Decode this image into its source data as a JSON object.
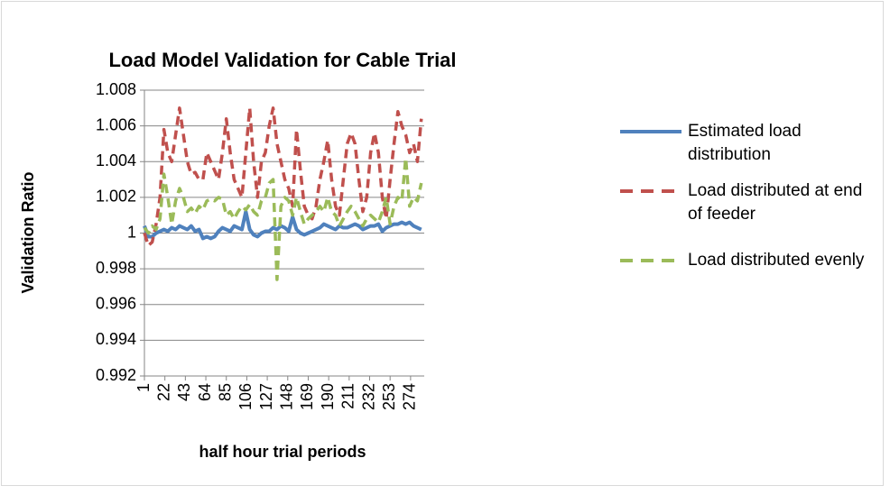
{
  "chart_data": {
    "type": "line",
    "title": "Load Model Validation for Cable Trial",
    "x_label": "half hour trial periods",
    "y_label": "Validation Ratio",
    "x": [
      1,
      5,
      9,
      13,
      17,
      21,
      25,
      29,
      33,
      37,
      41,
      45,
      49,
      53,
      57,
      61,
      65,
      69,
      73,
      77,
      81,
      85,
      89,
      93,
      97,
      101,
      105,
      109,
      113,
      117,
      121,
      125,
      129,
      133,
      137,
      141,
      145,
      149,
      153,
      157,
      161,
      165,
      169,
      173,
      177,
      181,
      185,
      189,
      193,
      197,
      201,
      205,
      209,
      213,
      217,
      221,
      225,
      229,
      233,
      237,
      241,
      245,
      249,
      253,
      257,
      261,
      265,
      269,
      273,
      277,
      281,
      285
    ],
    "xlim": [
      1,
      288
    ],
    "xticks": [
      1,
      22,
      43,
      64,
      85,
      106,
      127,
      148,
      169,
      190,
      211,
      232,
      253,
      274
    ],
    "ylim": [
      0.992,
      1.008
    ],
    "yticks": [
      0.992,
      0.994,
      0.996,
      0.998,
      1,
      1.002,
      1.004,
      1.006,
      1.008
    ],
    "grid": true,
    "legend": "right",
    "series": [
      {
        "name": "Estimated load distribution",
        "color": "#4f81bd",
        "line_style": "solid",
        "values": [
          1.0004,
          0.9998,
          0.9998,
          1.0,
          1.0001,
          1.0002,
          1.0001,
          1.0003,
          1.0002,
          1.0004,
          1.0003,
          1.0002,
          1.0004,
          1.0001,
          1.0002,
          0.9997,
          0.9998,
          0.9997,
          0.9998,
          1.0001,
          1.0003,
          1.0002,
          1.0001,
          1.0004,
          1.0003,
          1.0002,
          1.0012,
          1.0002,
          0.9999,
          0.9998,
          1.0,
          1.0001,
          1.0001,
          1.0003,
          1.0002,
          1.0004,
          1.0003,
          1.0001,
          1.0009,
          1.0002,
          1.0,
          0.9999,
          1.0,
          1.0001,
          1.0002,
          1.0003,
          1.0005,
          1.0004,
          1.0003,
          1.0002,
          1.0004,
          1.0003,
          1.0003,
          1.0004,
          1.0005,
          1.0004,
          1.0002,
          1.0003,
          1.0004,
          1.0004,
          1.0005,
          1.0001,
          1.0003,
          1.0004,
          1.0005,
          1.0005,
          1.0006,
          1.0005,
          1.0006,
          1.0004,
          1.0003,
          1.0002
        ]
      },
      {
        "name": "Load distributed at end of feeder",
        "color": "#c0504d",
        "line_style": "dashed",
        "values": [
          1.0,
          0.9993,
          0.9995,
          1.0005,
          1.002,
          1.0058,
          1.0045,
          1.004,
          1.0055,
          1.007,
          1.0055,
          1.004,
          1.0033,
          1.0034,
          1.003,
          1.003,
          1.0045,
          1.004,
          1.0035,
          1.003,
          1.0045,
          1.0064,
          1.0045,
          1.003,
          1.0025,
          1.002,
          1.0045,
          1.007,
          1.004,
          1.002,
          1.004,
          1.0045,
          1.006,
          1.007,
          1.005,
          1.004,
          1.003,
          1.0025,
          1.0015,
          1.0058,
          1.0035,
          1.0015,
          1.001,
          1.0008,
          1.0015,
          1.003,
          1.004,
          1.0052,
          1.003,
          1.0015,
          1.001,
          1.003,
          1.005,
          1.0056,
          1.005,
          1.003,
          1.0012,
          1.002,
          1.0045,
          1.0056,
          1.0045,
          1.002,
          1.0008,
          1.003,
          1.005,
          1.0068,
          1.006,
          1.0055,
          1.0045,
          1.005,
          1.004,
          1.0064
        ]
      },
      {
        "name": "Load distributed evenly",
        "color": "#9bbb59",
        "line_style": "dashed",
        "values": [
          1.0003,
          1.0,
          1.0004,
          1.0002,
          1.0008,
          1.0033,
          1.002,
          1.0005,
          1.0018,
          1.0025,
          1.002,
          1.0012,
          1.0014,
          1.0011,
          1.0015,
          1.0013,
          1.0018,
          1.0019,
          1.0018,
          1.002,
          1.0019,
          1.001,
          1.0012,
          1.0008,
          1.0012,
          1.0015,
          1.0013,
          1.0016,
          1.0012,
          1.001,
          1.0018,
          1.002,
          1.0028,
          1.003,
          0.9974,
          1.0015,
          1.002,
          1.0018,
          1.001,
          1.002,
          1.0012,
          1.0005,
          1.0008,
          1.001,
          1.0012,
          1.0015,
          1.0012,
          1.002,
          1.0012,
          1.001,
          1.0004,
          1.0008,
          1.0012,
          1.0015,
          1.0012,
          1.0008,
          1.0004,
          1.0008,
          1.001,
          1.0008,
          1.0006,
          1.0012,
          1.002,
          1.0005,
          1.0015,
          1.002,
          1.0018,
          1.0042,
          1.0015,
          1.002,
          1.0018,
          1.0028
        ]
      }
    ]
  }
}
